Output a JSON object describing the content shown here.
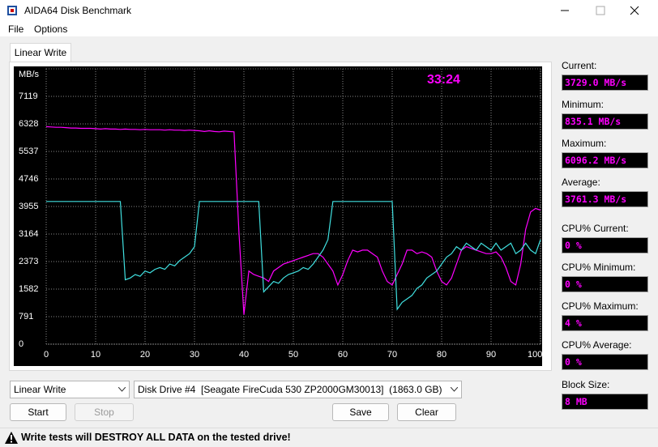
{
  "window": {
    "title": "AIDA64 Disk Benchmark"
  },
  "menu": [
    "File",
    "Options"
  ],
  "tab": "Linear Write",
  "chart_data": {
    "type": "line",
    "y_label": "MB/s",
    "timer": "33:24",
    "x": [
      0,
      1,
      2,
      3,
      4,
      5,
      6,
      7,
      8,
      9,
      10,
      11,
      12,
      13,
      14,
      15,
      16,
      17,
      18,
      19,
      20,
      21,
      22,
      23,
      24,
      25,
      26,
      27,
      28,
      29,
      30,
      31,
      32,
      33,
      34,
      35,
      36,
      37,
      38,
      39,
      40,
      41,
      42,
      43,
      44,
      45,
      46,
      47,
      48,
      49,
      50,
      51,
      52,
      53,
      54,
      55,
      56,
      57,
      58,
      59,
      60,
      61,
      62,
      63,
      64,
      65,
      66,
      67,
      68,
      69,
      70,
      71,
      72,
      73,
      74,
      75,
      76,
      77,
      78,
      79,
      80,
      81,
      82,
      83,
      84,
      85,
      86,
      87,
      88,
      89,
      90,
      91,
      92,
      93,
      94,
      95,
      96,
      97,
      98,
      99,
      100
    ],
    "series": [
      {
        "color": "#ff00ff",
        "values": [
          6250,
          6240,
          6230,
          6230,
          6220,
          6210,
          6210,
          6200,
          6200,
          6200,
          6190,
          6180,
          6190,
          6180,
          6180,
          6170,
          6180,
          6170,
          6170,
          6160,
          6170,
          6160,
          6160,
          6160,
          6150,
          6160,
          6150,
          6150,
          6140,
          6150,
          6140,
          6130,
          6110,
          6130,
          6110,
          6100,
          6120,
          6110,
          6100,
          3200,
          850,
          2100,
          2000,
          1950,
          1900,
          1800,
          2100,
          2200,
          2300,
          2350,
          2400,
          2450,
          2500,
          2550,
          2600,
          2600,
          2500,
          2300,
          2100,
          1700,
          2000,
          2400,
          2700,
          2650,
          2700,
          2700,
          2600,
          2500,
          2100,
          1800,
          1700,
          2000,
          2300,
          2700,
          2700,
          2600,
          2650,
          2600,
          2500,
          2100,
          1800,
          1700,
          1900,
          2300,
          2700,
          2800,
          2750,
          2700,
          2650,
          2600,
          2600,
          2650,
          2500,
          2200,
          1800,
          1700,
          2300,
          3300,
          3800,
          3900,
          3850
        ]
      },
      {
        "color": "#40e0e0",
        "values": [
          4100,
          4100,
          4100,
          4100,
          4100,
          4100,
          4100,
          4100,
          4100,
          4100,
          4100,
          4100,
          4100,
          4100,
          4100,
          4100,
          1850,
          1900,
          2000,
          1950,
          2100,
          2050,
          2150,
          2200,
          2150,
          2300,
          2250,
          2400,
          2500,
          2600,
          2800,
          4100,
          4100,
          4100,
          4100,
          4100,
          4100,
          4100,
          4100,
          4100,
          4100,
          4100,
          4100,
          4100,
          1500,
          1650,
          1800,
          1750,
          1900,
          2000,
          2050,
          2100,
          2200,
          2150,
          2300,
          2500,
          2700,
          3000,
          4100,
          4100,
          4100,
          4100,
          4100,
          4100,
          4100,
          4100,
          4100,
          4100,
          4100,
          4100,
          4100,
          1000,
          1200,
          1300,
          1400,
          1600,
          1700,
          1900,
          2000,
          2100,
          2300,
          2500,
          2600,
          2800,
          2700,
          2900,
          2800,
          2700,
          2900,
          2800,
          2700,
          2900,
          2700,
          2800,
          2900,
          2600,
          2700,
          2900,
          2700,
          2600,
          3000
        ]
      }
    ],
    "xlim": [
      0,
      100
    ],
    "ylim": [
      0,
      7910
    ],
    "xticks": [
      0,
      10,
      20,
      30,
      40,
      50,
      60,
      70,
      80,
      90,
      {
        "value": 100,
        "label": "100 %"
      }
    ],
    "yticks": [
      0,
      791,
      1582,
      2373,
      3164,
      3955,
      4746,
      5537,
      6328,
      7119
    ],
    "grid": true
  },
  "stats": [
    {
      "label": "Current:",
      "value": "3729.0 MB/s"
    },
    {
      "label": "Minimum:",
      "value": "835.1 MB/s"
    },
    {
      "label": "Maximum:",
      "value": "6096.2 MB/s"
    },
    {
      "label": "Average:",
      "value": "3761.3 MB/s"
    },
    {
      "label": "CPU% Current:",
      "value": "0 %"
    },
    {
      "label": "CPU% Minimum:",
      "value": "0 %"
    },
    {
      "label": "CPU% Maximum:",
      "value": "4 %"
    },
    {
      "label": "CPU% Average:",
      "value": "0 %"
    },
    {
      "label": "Block Size:",
      "value": "8 MB"
    }
  ],
  "controls": {
    "test_select": "Linear Write",
    "drive_select": "Disk Drive #4  [Seagate FireCuda 530 ZP2000GM30013]  (1863.0 GB)",
    "buttons": [
      "Start",
      "Stop",
      "Save",
      "Clear"
    ]
  },
  "warning": "Write tests will DESTROY ALL DATA on the tested drive!"
}
